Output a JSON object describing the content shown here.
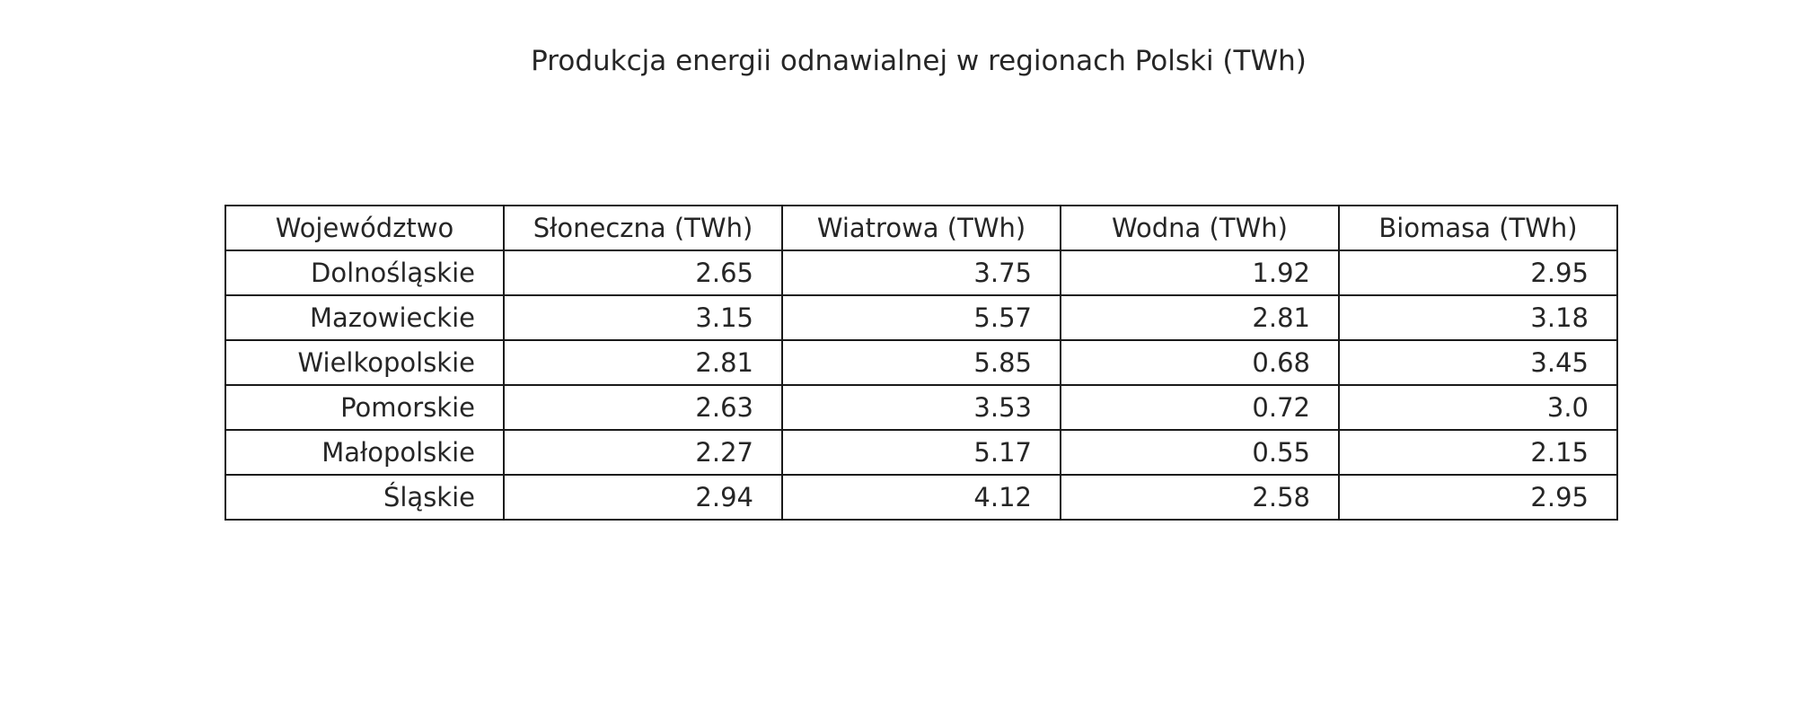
{
  "chart_data": {
    "type": "table",
    "title": "Produkcja energii odnawialnej w regionach Polski (TWh)",
    "columns": [
      "Województwo",
      "Słoneczna (TWh)",
      "Wiatrowa (TWh)",
      "Wodna (TWh)",
      "Biomasa (TWh)"
    ],
    "rows": [
      [
        "Dolnośląskie",
        "2.65",
        "3.75",
        "1.92",
        "2.95"
      ],
      [
        "Mazowieckie",
        "3.15",
        "5.57",
        "2.81",
        "3.18"
      ],
      [
        "Wielkopolskie",
        "2.81",
        "5.85",
        "0.68",
        "3.45"
      ],
      [
        "Pomorskie",
        "2.63",
        "3.53",
        "0.72",
        "3.0"
      ],
      [
        "Małopolskie",
        "2.27",
        "5.17",
        "0.55",
        "2.15"
      ],
      [
        "Śląskie",
        "2.94",
        "4.12",
        "2.58",
        "2.95"
      ]
    ]
  },
  "colors": {
    "text": "#262626",
    "border": "#1a1a1a",
    "background": "#ffffff"
  }
}
